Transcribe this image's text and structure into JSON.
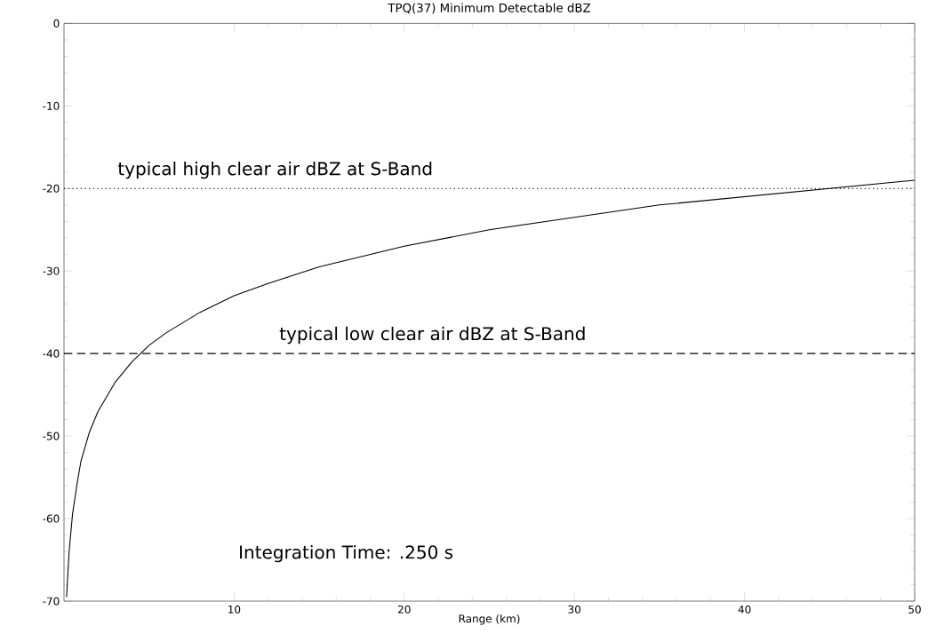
{
  "chart_data": {
    "type": "line",
    "title": "TPQ(37) Minimum Detectable dBZ",
    "xlabel": "Range (km)",
    "x": [
      0.15,
      0.3,
      0.5,
      0.75,
      1,
      1.5,
      2,
      3,
      4,
      5,
      6,
      8,
      10,
      12,
      15,
      20,
      25,
      30,
      35,
      40,
      45,
      50
    ],
    "series": [
      {
        "color": "#000000",
        "values": [
          -69.5,
          -64,
          -59.5,
          -56,
          -53,
          -49.5,
          -47,
          -43.5,
          -41,
          -39,
          -37.5,
          -35,
          -33,
          -31.5,
          -29.5,
          -27,
          -25,
          -23.5,
          -22,
          -21,
          -20,
          -19
        ]
      }
    ],
    "xlim": [
      0,
      50
    ],
    "xticks": [
      10,
      20,
      30,
      40,
      50
    ],
    "ylim": [
      -70,
      0
    ],
    "yticks": [
      -70,
      -60,
      -50,
      -40,
      -30,
      -20,
      -10,
      0
    ],
    "ref_lines": [
      {
        "axis": "y",
        "value": -20,
        "label": "typical high clear air dBZ at S-Band",
        "color": "#000000",
        "line_style": "dotted"
      },
      {
        "axis": "y",
        "value": -40,
        "label": "typical low clear air dBZ at S-Band",
        "color": "#000000",
        "line_style": "dashed"
      }
    ],
    "annotations": [
      "Integration Time: .250 s"
    ],
    "grid": false,
    "marker": "none",
    "line_style": "solid"
  }
}
